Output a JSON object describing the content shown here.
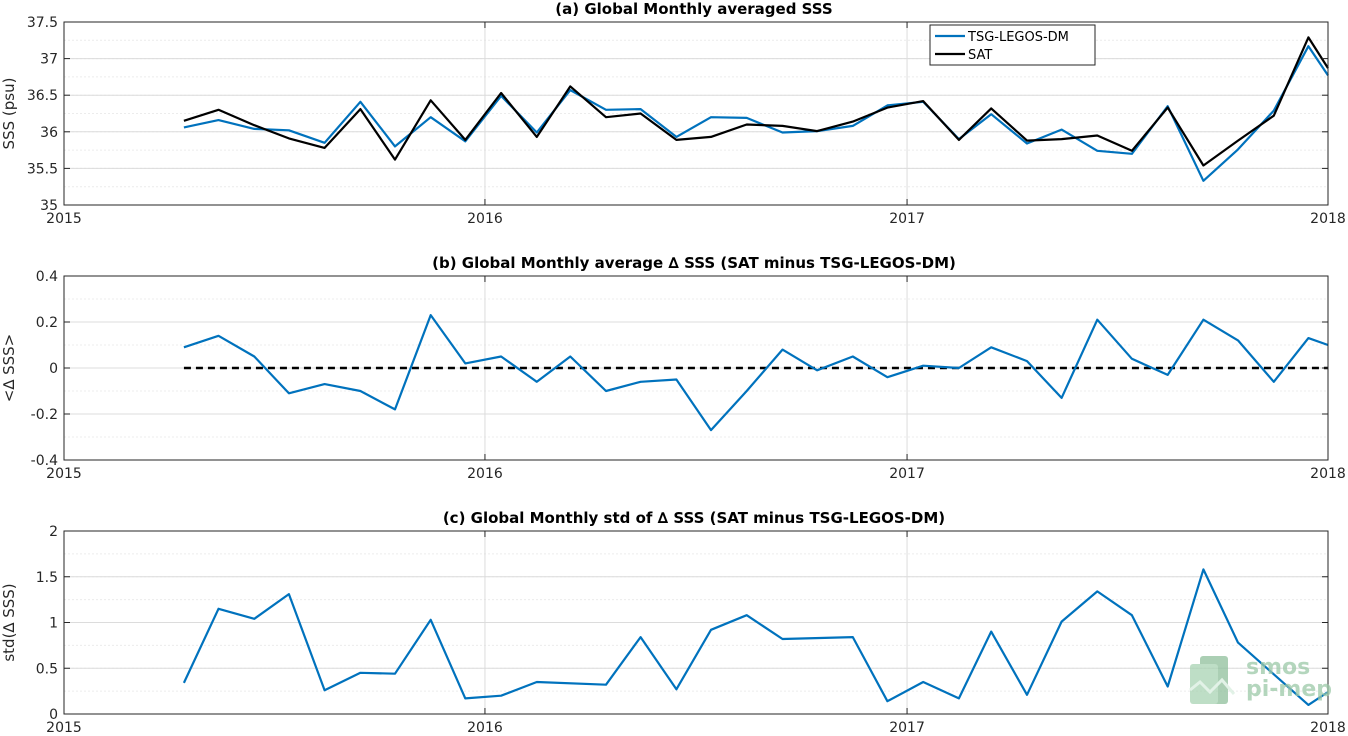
{
  "chart_data": [
    {
      "type": "line",
      "title": "(a) Global Monthly averaged SSS",
      "xlabel": "",
      "ylabel": "SSS (psu)",
      "xlim": [
        "2015-01-01",
        "2018-01-01"
      ],
      "ylim": [
        35,
        37.5
      ],
      "x_ticks": [
        "2015",
        "2016",
        "2017",
        "2018"
      ],
      "y_ticks": [
        "35",
        "35.5",
        "36",
        "36.5",
        "37",
        "37.5"
      ],
      "y_tick_values": [
        35,
        35.5,
        36,
        36.5,
        37,
        37.5
      ],
      "grid": true,
      "legend_position": "top-right",
      "x": [
        "2015-04-15",
        "2015-05-15",
        "2015-06-15",
        "2015-07-15",
        "2015-08-15",
        "2015-09-15",
        "2015-10-15",
        "2015-11-15",
        "2015-12-15",
        "2016-01-15",
        "2016-02-15",
        "2016-03-15",
        "2016-04-15",
        "2016-05-15",
        "2016-06-15",
        "2016-07-15",
        "2016-08-15",
        "2016-09-15",
        "2016-10-15",
        "2016-11-15",
        "2016-12-15",
        "2017-01-15",
        "2017-02-15",
        "2017-03-15",
        "2017-04-15",
        "2017-05-15",
        "2017-06-15",
        "2017-07-15",
        "2017-08-15",
        "2017-09-15",
        "2017-10-15",
        "2017-11-15",
        "2017-12-15",
        "2018-01-01"
      ],
      "series": [
        {
          "name": "TSG-LEGOS-DM",
          "color": "#0072BD",
          "values": [
            36.06,
            36.16,
            36.04,
            36.02,
            35.85,
            36.41,
            35.8,
            36.2,
            35.87,
            36.49,
            35.99,
            36.57,
            36.3,
            36.31,
            35.93,
            36.2,
            36.19,
            35.99,
            36.01,
            36.08,
            36.36,
            36.41,
            35.9,
            36.24,
            35.84,
            36.03,
            35.74,
            35.7,
            36.35,
            35.33,
            35.76,
            36.29,
            37.17,
            36.77
          ]
        },
        {
          "name": "SAT",
          "color": "#000000",
          "values": [
            36.15,
            36.3,
            36.09,
            35.91,
            35.78,
            36.31,
            35.62,
            36.43,
            35.89,
            36.53,
            35.93,
            36.62,
            36.2,
            36.25,
            35.89,
            35.93,
            36.1,
            36.08,
            36.01,
            36.14,
            36.33,
            36.42,
            35.89,
            36.32,
            35.88,
            35.9,
            35.95,
            35.74,
            36.33,
            35.54,
            35.88,
            36.22,
            37.29,
            36.87
          ]
        }
      ]
    },
    {
      "type": "line",
      "title": "(b) Global Monthly average ∆ SSS (SAT minus TSG-LEGOS-DM)",
      "xlabel": "",
      "ylabel": "<∆ SSS>",
      "xlim": [
        "2015-01-01",
        "2018-01-01"
      ],
      "ylim": [
        -0.4,
        0.4
      ],
      "x_ticks": [
        "2015",
        "2016",
        "2017",
        "2018"
      ],
      "y_ticks": [
        "-0.4",
        "-0.2",
        "0",
        "0.2",
        "0.4"
      ],
      "y_tick_values": [
        -0.4,
        -0.2,
        0,
        0.2,
        0.4
      ],
      "grid": true,
      "reference_line": {
        "y": 0,
        "style": "dashed",
        "color": "#000000"
      },
      "x": [
        "2015-04-15",
        "2015-05-15",
        "2015-06-15",
        "2015-07-15",
        "2015-08-15",
        "2015-09-15",
        "2015-10-15",
        "2015-11-15",
        "2015-12-15",
        "2016-01-15",
        "2016-02-15",
        "2016-03-15",
        "2016-04-15",
        "2016-05-15",
        "2016-06-15",
        "2016-07-15",
        "2016-08-15",
        "2016-09-15",
        "2016-10-15",
        "2016-11-15",
        "2016-12-15",
        "2017-01-15",
        "2017-02-15",
        "2017-03-15",
        "2017-04-15",
        "2017-05-15",
        "2017-06-15",
        "2017-07-15",
        "2017-08-15",
        "2017-09-15",
        "2017-10-15",
        "2017-11-15",
        "2017-12-15",
        "2018-01-01"
      ],
      "series": [
        {
          "name": "",
          "color": "#0072BD",
          "values": [
            0.09,
            0.14,
            0.05,
            -0.11,
            -0.07,
            -0.1,
            -0.18,
            0.23,
            0.02,
            0.05,
            -0.06,
            0.05,
            -0.1,
            -0.06,
            -0.05,
            -0.27,
            -0.1,
            0.08,
            -0.01,
            0.05,
            -0.04,
            0.01,
            0.0,
            0.09,
            0.03,
            -0.13,
            0.21,
            0.04,
            -0.03,
            0.21,
            0.12,
            -0.06,
            0.13,
            0.1
          ]
        }
      ]
    },
    {
      "type": "line",
      "title": "(c) Global Monthly std of ∆ SSS (SAT minus TSG-LEGOS-DM)",
      "xlabel": "",
      "ylabel": "std(∆ SSS)",
      "xlim": [
        "2015-01-01",
        "2018-01-01"
      ],
      "ylim": [
        0,
        2
      ],
      "x_ticks": [
        "2015",
        "2016",
        "2017",
        "2018"
      ],
      "y_ticks": [
        "0",
        "0.5",
        "1",
        "1.5",
        "2"
      ],
      "y_tick_values": [
        0,
        0.5,
        1,
        1.5,
        2
      ],
      "grid": true,
      "x": [
        "2015-04-15",
        "2015-05-15",
        "2015-06-15",
        "2015-07-15",
        "2015-08-15",
        "2015-09-15",
        "2015-10-15",
        "2015-11-15",
        "2015-12-15",
        "2016-01-15",
        "2016-02-15",
        "2016-04-15",
        "2016-05-15",
        "2016-06-15",
        "2016-07-15",
        "2016-08-15",
        "2016-09-15",
        "2016-11-15",
        "2016-12-15",
        "2017-01-15",
        "2017-02-15",
        "2017-03-15",
        "2017-04-15",
        "2017-05-15",
        "2017-06-15",
        "2017-07-15",
        "2017-08-15",
        "2017-09-15",
        "2017-10-15",
        "2017-12-15",
        "2018-01-01"
      ],
      "series": [
        {
          "name": "",
          "color": "#0072BD",
          "values": [
            0.34,
            1.15,
            1.04,
            1.31,
            0.26,
            0.45,
            0.44,
            1.03,
            0.17,
            0.2,
            0.35,
            0.32,
            0.84,
            0.27,
            0.92,
            1.08,
            0.82,
            0.84,
            0.14,
            0.35,
            0.17,
            0.9,
            0.21,
            1.01,
            1.34,
            1.08,
            0.3,
            1.58,
            0.78,
            0.1,
            0.24
          ]
        }
      ]
    }
  ],
  "watermark": {
    "line1": "smos",
    "line2": "pi-mep",
    "color": "#9cc9a8"
  }
}
